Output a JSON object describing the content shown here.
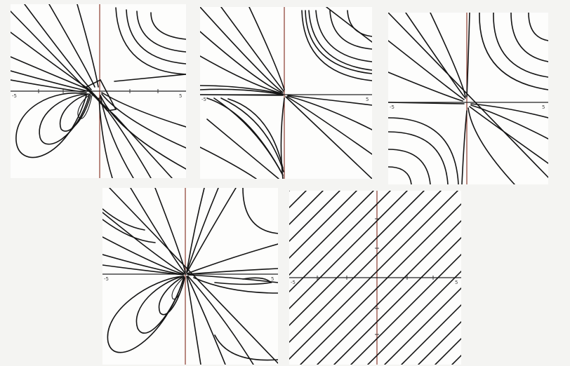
{
  "panels": [
    {
      "id": "panel-1",
      "axis_ticks": [
        "-5",
        "5"
      ]
    },
    {
      "id": "panel-2",
      "axis_ticks": [
        "-5",
        "5"
      ]
    },
    {
      "id": "panel-3",
      "axis_ticks": [
        "-5",
        "5"
      ]
    },
    {
      "id": "panel-4",
      "axis_ticks": [
        "-5",
        "5"
      ]
    },
    {
      "id": "panel-5",
      "axis_ticks": [
        "-5",
        "5"
      ]
    }
  ],
  "colors": {
    "ink": "#141414",
    "axis_tint": "#8a3b2e",
    "paper": "#fdfdfc"
  }
}
